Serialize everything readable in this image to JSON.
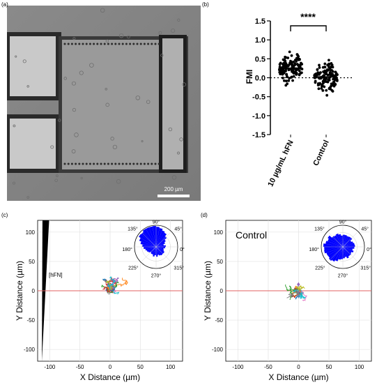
{
  "figure": {
    "panel_a": {
      "label": "(a)",
      "scalebar_label": "200 µm"
    },
    "panel_b": {
      "label": "(b)"
    },
    "panel_c": {
      "label": "(c)",
      "gradient_label": "[hFN]",
      "xlabel": "X Distance (µm)",
      "ylabel": "Y Distance (µm)"
    },
    "panel_d": {
      "label": "(d)",
      "title": "Control",
      "xlabel": "X Distance (µm)",
      "ylabel": "Y Distance (µm)"
    }
  },
  "chart_data": [
    {
      "type": "scatter",
      "panel": "(b)",
      "ylabel": "FMI",
      "categories": [
        "10 µg/mL hFN",
        "Control"
      ],
      "ylim": [
        -1.5,
        1.5
      ],
      "yticks": [
        "1.5",
        "1.0",
        "0.5",
        "0.0",
        "-0.5",
        "-1.0",
        "-1.5"
      ],
      "significance": "****",
      "reference_line": 0.0,
      "series": [
        {
          "values_range": [
            -0.7,
            1.0
          ],
          "median": 0.25
        },
        {
          "values_range": [
            -1.0,
            0.95
          ],
          "median": 0.02
        }
      ]
    },
    {
      "type": "line",
      "panel": "(c)",
      "xlabel": "X Distance (µm)",
      "ylabel": "Y Distance (µm)",
      "xlim": [
        -120,
        120
      ],
      "ylim": [
        -120,
        120
      ],
      "xticks": [
        "-100",
        "-50",
        "0",
        "50",
        "100"
      ],
      "yticks": [
        "100",
        "50",
        "0",
        "-50",
        "-100"
      ],
      "grid": true,
      "reference_line": 0,
      "inset": {
        "type": "polar-histogram",
        "angle_labels": [
          "90°",
          "45°",
          "0°",
          "315°",
          "270°",
          "225°",
          "180°",
          "135°"
        ],
        "color": "#0000ff"
      }
    },
    {
      "type": "line",
      "panel": "(d)",
      "xlabel": "X Distance (µm)",
      "ylabel": "Y Distance (µm)",
      "xlim": [
        -120,
        120
      ],
      "ylim": [
        -120,
        120
      ],
      "xticks": [
        "-100",
        "-50",
        "0",
        "50",
        "100"
      ],
      "yticks": [
        "100",
        "50",
        "0",
        "-50",
        "-100"
      ],
      "grid": true,
      "reference_line": 0,
      "inset": {
        "type": "polar-histogram",
        "angle_labels": [
          "90°",
          "45°",
          "0°",
          "315°",
          "270°",
          "225°",
          "180°",
          "135°"
        ],
        "color": "#0000ff"
      }
    }
  ],
  "colors": {
    "micrograph_bg": "#7f7f7f",
    "rose_blue": "#0000ff",
    "zero_line": "#e06060",
    "track_palette": [
      "#1f77b4",
      "#ff7f0e",
      "#2ca02c",
      "#d62728",
      "#9467bd",
      "#8c564b",
      "#e377c2",
      "#7f7f7f",
      "#bcbd22",
      "#17becf"
    ]
  }
}
